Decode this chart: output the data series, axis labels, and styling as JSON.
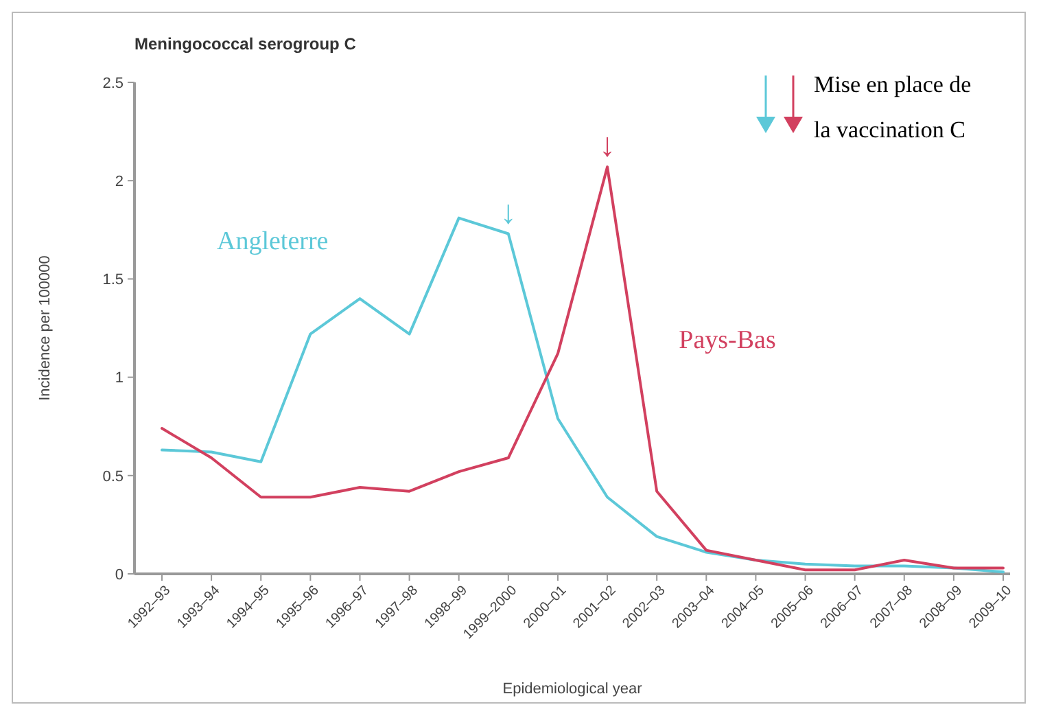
{
  "chart_data": {
    "type": "line",
    "title": "Meningococcal serogroup C",
    "xlabel": "Epidemiological year",
    "ylabel": "Incidence per 100000",
    "categories": [
      "1992–93",
      "1993–94",
      "1994–95",
      "1995–96",
      "1996–97",
      "1997–98",
      "1998–99",
      "1999–2000",
      "2000–01",
      "2001–02",
      "2002–03",
      "2003–04",
      "2004–05",
      "2005–06",
      "2006–07",
      "2007–08",
      "2008–09",
      "2009–10"
    ],
    "series": [
      {
        "name": "Angleterre",
        "color": "#5cc8d8",
        "values": [
          0.63,
          0.62,
          0.57,
          1.22,
          1.4,
          1.22,
          1.81,
          1.73,
          0.79,
          0.39,
          0.19,
          0.11,
          0.07,
          0.05,
          0.04,
          0.04,
          0.03,
          0.01
        ]
      },
      {
        "name": "Pays-Bas",
        "color": "#d2405f",
        "values": [
          0.74,
          0.59,
          0.39,
          0.39,
          0.44,
          0.42,
          0.52,
          0.59,
          1.12,
          2.07,
          0.42,
          0.12,
          0.07,
          0.02,
          0.02,
          0.07,
          0.03,
          0.03
        ]
      }
    ],
    "ylim": [
      0,
      2.5
    ],
    "yticks": [
      0,
      0.5,
      1,
      1.5,
      2,
      2.5
    ],
    "grid": false,
    "marker": "none",
    "line_style": "solid",
    "annotations": [
      "Mise en place de la vaccination C",
      {
        "text": "↓",
        "x": "1999–2000",
        "y": 1.73
      },
      {
        "text": "↓",
        "x": "2001–02",
        "y": 2.07
      }
    ]
  }
}
